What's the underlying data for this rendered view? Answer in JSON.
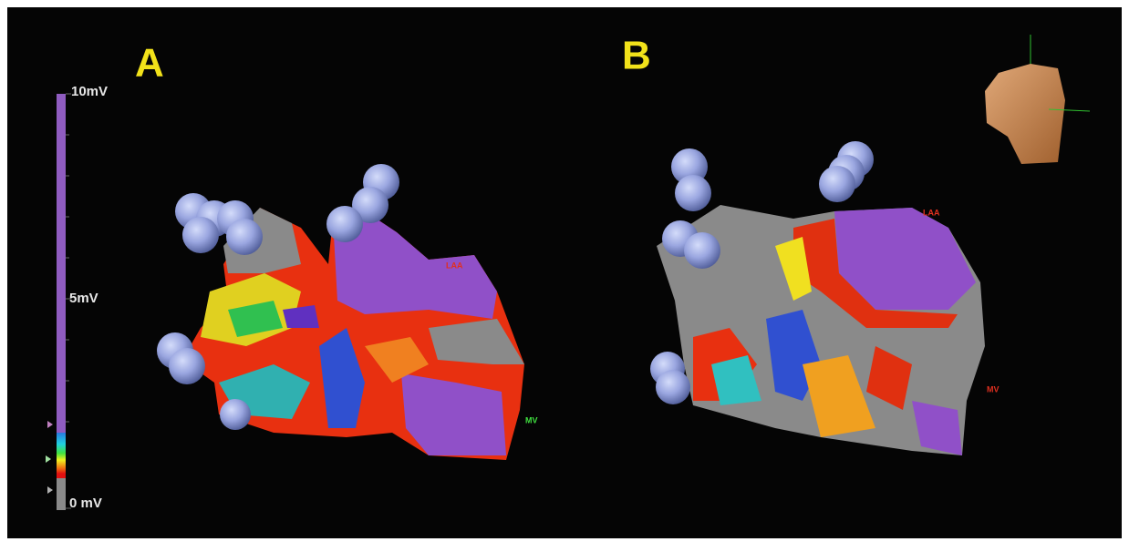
{
  "panels": [
    {
      "label": "A",
      "annotations": [
        "LAA",
        "MV"
      ]
    },
    {
      "label": "B",
      "annotations": [
        "LAA",
        "MV"
      ]
    }
  ],
  "scale": {
    "top": "10mV",
    "middle": "5mV",
    "bottom": "0 mV"
  }
}
